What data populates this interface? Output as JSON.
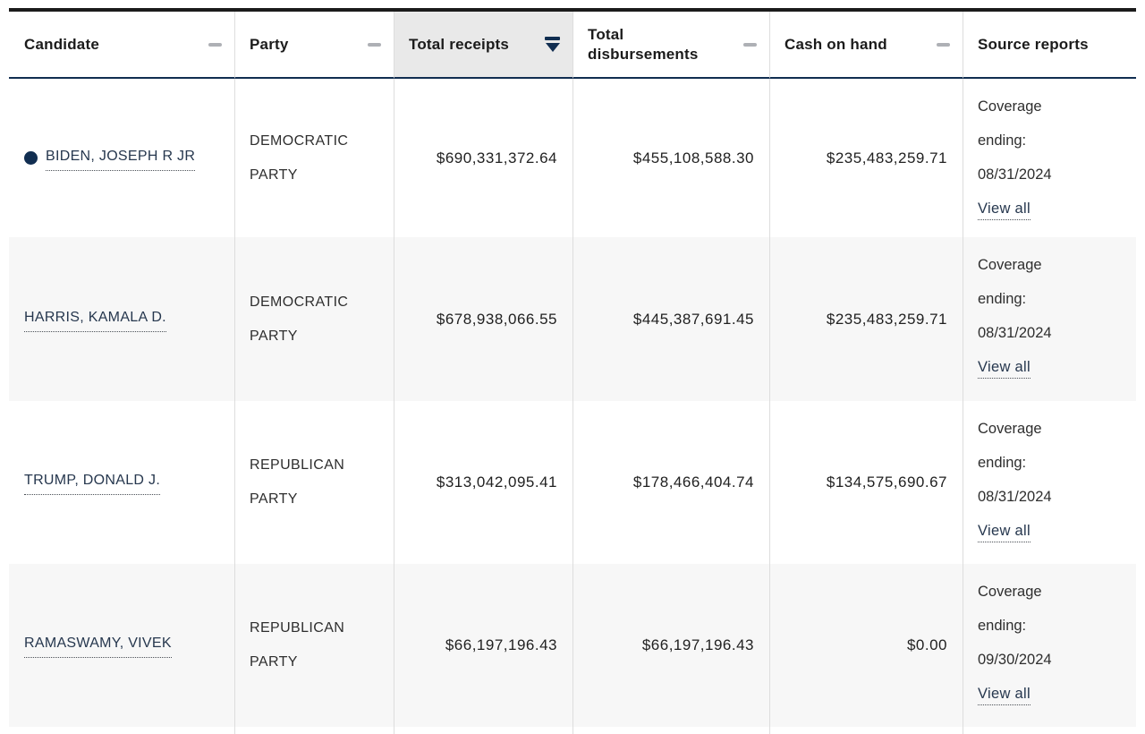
{
  "colors": {
    "accent_navy": "#112e51",
    "sorted_header_bg": "#e9e9e9",
    "alt_row_bg": "#f7f7f7",
    "top_border": "#1b1b1b",
    "column_border": "#dddddd",
    "dash_icon_gray": "#aeb0b5"
  },
  "table": {
    "columns": [
      {
        "label": "Candidate",
        "sort_state": "unsorted",
        "icon": "dash-icon"
      },
      {
        "label": "Party",
        "sort_state": "unsorted",
        "icon": "dash-icon"
      },
      {
        "label": "Total receipts",
        "sort_state": "sorted-descending",
        "icon": "sort-descending-icon"
      },
      {
        "label": "Total disbursements",
        "sort_state": "unsorted",
        "icon": "dash-icon"
      },
      {
        "label": "Cash on hand",
        "sort_state": "unsorted",
        "icon": "dash-icon"
      },
      {
        "label": "Source reports",
        "sort_state": "none",
        "icon": "none"
      }
    ],
    "rows": [
      {
        "candidate": "BIDEN, JOSEPH R JR",
        "has_bullet": true,
        "party": "DEMOCRATIC PARTY",
        "total_receipts": "$690,331,372.64",
        "total_disbursements": "$455,108,588.30",
        "cash_on_hand": "$235,483,259.71",
        "coverage_label": "Coverage ending:",
        "coverage_date": "08/31/2024",
        "view_all_label": "View all"
      },
      {
        "candidate": "HARRIS, KAMALA D.",
        "has_bullet": false,
        "party": "DEMOCRATIC PARTY",
        "total_receipts": "$678,938,066.55",
        "total_disbursements": "$445,387,691.45",
        "cash_on_hand": "$235,483,259.71",
        "coverage_label": "Coverage ending:",
        "coverage_date": "08/31/2024",
        "view_all_label": "View all"
      },
      {
        "candidate": "TRUMP, DONALD J.",
        "has_bullet": false,
        "party": "REPUBLICAN PARTY",
        "total_receipts": "$313,042,095.41",
        "total_disbursements": "$178,466,404.74",
        "cash_on_hand": "$134,575,690.67",
        "coverage_label": "Coverage ending:",
        "coverage_date": "08/31/2024",
        "view_all_label": "View all"
      },
      {
        "candidate": "RAMASWAMY, VIVEK",
        "has_bullet": false,
        "party": "REPUBLICAN PARTY",
        "total_receipts": "$66,197,196.43",
        "total_disbursements": "$66,197,196.43",
        "cash_on_hand": "$0.00",
        "coverage_label": "Coverage ending:",
        "coverage_date": "09/30/2024",
        "view_all_label": "View all"
      }
    ]
  }
}
